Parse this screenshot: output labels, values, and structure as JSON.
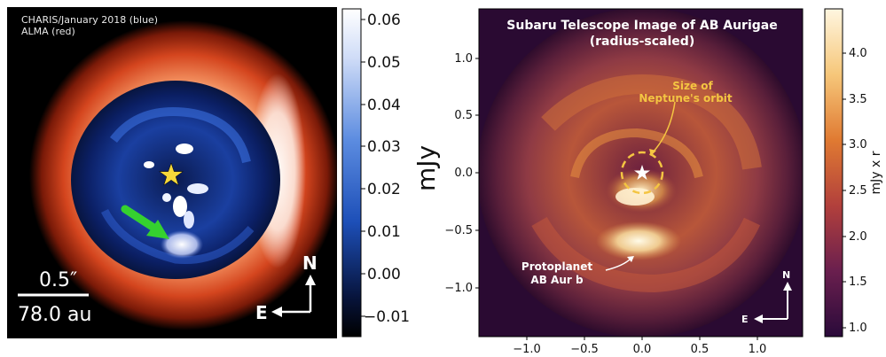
{
  "left_panel": {
    "legend_line1": "CHARIS/January 2018 (blue)",
    "legend_line2": "ALMA (red)",
    "scale_arcsec": "0.5″",
    "scale_au": "78.0 au",
    "compass_north": "N",
    "compass_east": "E",
    "colorbar": {
      "unit_label": "mJy",
      "ticks": [
        "0.06",
        "0.05",
        "0.04",
        "0.03",
        "0.02",
        "0.01",
        "0.00",
        "−0.01"
      ],
      "colors": {
        "low": "#000000",
        "mid": "#1d4fb8",
        "high": "#ffffff"
      }
    }
  },
  "right_panel": {
    "title_line1": "Subaru Telescope Image of AB Aurigae",
    "title_line2": "(radius-scaled)",
    "annotation_orbit_line1": "Size of",
    "annotation_orbit_line2": "Neptune's orbit",
    "annotation_planet_line1": "Protoplanet",
    "annotation_planet_line2": "AB Aur b",
    "compass_north": "N",
    "compass_east": "E",
    "y_ticks": [
      "1.0",
      "0.5",
      "0.0",
      "−0.5",
      "−1.0"
    ],
    "x_ticks": [
      "−1.0",
      "−0.5",
      "0.0",
      "0.5",
      "1.0"
    ],
    "colorbar": {
      "unit_label": "mJy x r",
      "ticks": [
        "4.0",
        "3.5",
        "3.0",
        "2.5",
        "2.0",
        "1.5",
        "1.0"
      ],
      "colors": {
        "low": "#2a0a3a",
        "mid": "#c0502a",
        "high": "#fff6e0"
      }
    }
  }
}
